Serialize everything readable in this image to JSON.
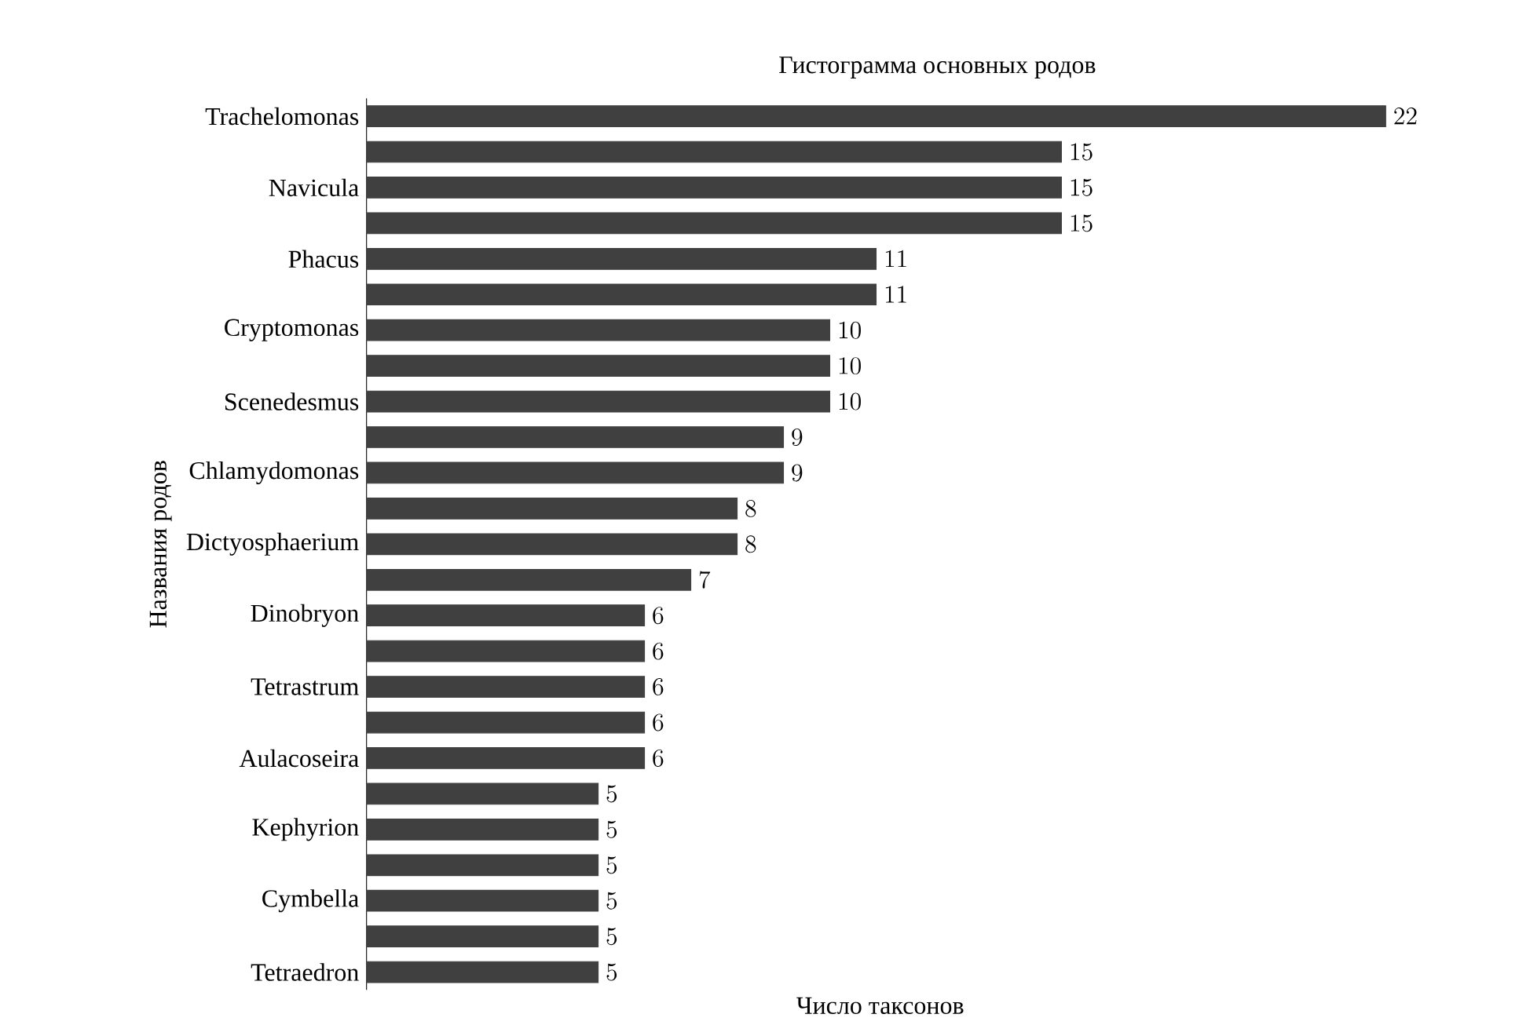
{
  "chart_data": {
    "type": "bar",
    "orientation": "horizontal",
    "title": "Гистограмма основных родов",
    "xlabel": "Число таксонов",
    "ylabel": "Названия родов",
    "categories": [
      "Trachelomonas",
      null,
      "Navicula",
      null,
      "Phacus",
      null,
      "Cryptomonas",
      null,
      "Scenedesmus",
      null,
      "Chlamydomonas",
      null,
      "Dictyosphaerium",
      null,
      "Dinobryon",
      null,
      "Tetrastrum",
      null,
      "Aulacoseira",
      null,
      "Kephyrion",
      null,
      "Cymbella",
      null,
      "Tetraedron"
    ],
    "values": [
      22,
      15,
      15,
      15,
      11,
      11,
      10,
      10,
      10,
      9,
      9,
      8,
      8,
      7,
      6,
      6,
      6,
      6,
      6,
      5,
      5,
      5,
      5,
      5,
      5
    ],
    "color": "#404040",
    "data_labels": true
  }
}
